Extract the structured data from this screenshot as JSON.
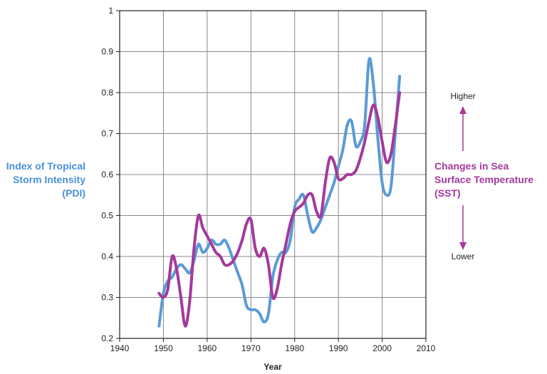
{
  "chart_data": {
    "type": "line",
    "xlabel": "Year",
    "x_ticks": [
      1940,
      1950,
      1960,
      1970,
      1980,
      1990,
      2000,
      2010
    ],
    "y_ticks": [
      "0.2",
      "0.3",
      "0.4",
      "0.5",
      "0.6",
      "0.7",
      "0.8",
      "0.9",
      "1"
    ],
    "xlim": [
      1940,
      2010
    ],
    "ylim": [
      0.2,
      1.0
    ],
    "grid": true,
    "left_axis_label": [
      "Index of Tropical",
      "Storm Intensity",
      "(PDI)"
    ],
    "right_axis_label": [
      "Changes in Sea",
      "Surface Temperature",
      "(SST)"
    ],
    "right_scale": {
      "higher": "Higher",
      "lower": "Lower"
    },
    "series": [
      {
        "name": "Index of Tropical Storm Intensity (PDI)",
        "color": "#5b9bd5",
        "x": [
          1949,
          1950,
          1951,
          1952,
          1953,
          1954,
          1955,
          1956,
          1957,
          1958,
          1959,
          1960,
          1961,
          1962,
          1963,
          1964,
          1965,
          1966,
          1967,
          1968,
          1969,
          1970,
          1971,
          1972,
          1973,
          1974,
          1975,
          1976,
          1977,
          1978,
          1979,
          1980,
          1981,
          1982,
          1983,
          1984,
          1985,
          1986,
          1987,
          1988,
          1989,
          1990,
          1991,
          1992,
          1993,
          1994,
          1995,
          1996,
          1997,
          1998,
          1999,
          2000,
          2001,
          2002,
          2003,
          2004
        ],
        "values": [
          0.23,
          0.31,
          0.34,
          0.35,
          0.37,
          0.38,
          0.37,
          0.36,
          0.39,
          0.43,
          0.41,
          0.42,
          0.44,
          0.43,
          0.43,
          0.44,
          0.42,
          0.39,
          0.36,
          0.33,
          0.28,
          0.27,
          0.27,
          0.26,
          0.24,
          0.26,
          0.35,
          0.39,
          0.41,
          0.41,
          0.44,
          0.52,
          0.54,
          0.55,
          0.5,
          0.46,
          0.47,
          0.49,
          0.52,
          0.55,
          0.58,
          0.62,
          0.66,
          0.72,
          0.73,
          0.67,
          0.68,
          0.72,
          0.88,
          0.82,
          0.69,
          0.58,
          0.55,
          0.57,
          0.7,
          0.84
        ]
      },
      {
        "name": "Changes in Sea Surface Temperature (SST)",
        "color": "#a4399b",
        "x": [
          1949,
          1950,
          1951,
          1952,
          1953,
          1954,
          1955,
          1956,
          1957,
          1958,
          1959,
          1960,
          1961,
          1962,
          1963,
          1964,
          1965,
          1966,
          1967,
          1968,
          1969,
          1970,
          1971,
          1972,
          1973,
          1974,
          1975,
          1976,
          1977,
          1978,
          1979,
          1980,
          1981,
          1982,
          1983,
          1984,
          1985,
          1986,
          1987,
          1988,
          1989,
          1990,
          1991,
          1992,
          1993,
          1994,
          1995,
          1996,
          1997,
          1998,
          1999,
          2000,
          2001,
          2002,
          2003,
          2004
        ],
        "values": [
          0.31,
          0.3,
          0.32,
          0.4,
          0.37,
          0.3,
          0.23,
          0.29,
          0.42,
          0.5,
          0.47,
          0.45,
          0.43,
          0.41,
          0.4,
          0.38,
          0.38,
          0.39,
          0.41,
          0.44,
          0.48,
          0.49,
          0.42,
          0.4,
          0.42,
          0.38,
          0.3,
          0.32,
          0.38,
          0.43,
          0.48,
          0.51,
          0.52,
          0.53,
          0.55,
          0.55,
          0.51,
          0.5,
          0.58,
          0.64,
          0.63,
          0.59,
          0.59,
          0.6,
          0.6,
          0.61,
          0.64,
          0.68,
          0.73,
          0.77,
          0.74,
          0.68,
          0.63,
          0.65,
          0.72,
          0.8
        ]
      }
    ]
  },
  "colors": {
    "pdi": "#5b9bd5",
    "sst": "#a4399b",
    "grid": "#888888",
    "axis": "#222222"
  }
}
